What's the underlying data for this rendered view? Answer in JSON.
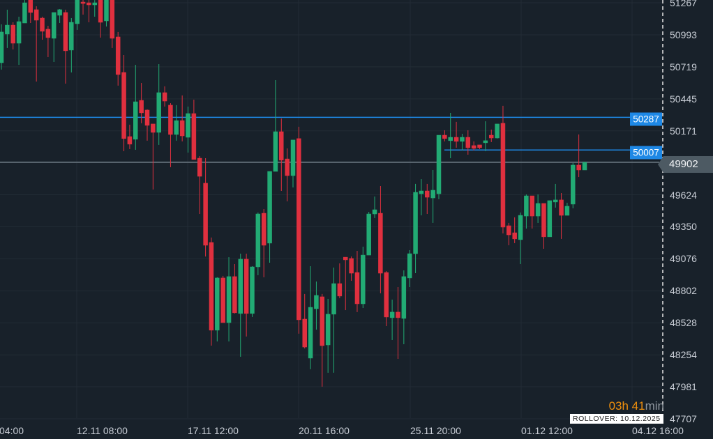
{
  "chart_data": {
    "type": "candlestick",
    "colors": {
      "background": "#18212a",
      "up": "#22ab74",
      "down": "#e0303f",
      "grid": "#222c35",
      "level_line": "#1e88e5",
      "current_line": "#5d6a73"
    },
    "price_ticks": [
      51267,
      50993,
      50719,
      50445,
      50171,
      49902,
      49624,
      49350,
      49076,
      48802,
      48528,
      48254,
      47981,
      47707
    ],
    "ylim": [
      47707,
      51267
    ],
    "time_ticks": [
      "04:00",
      "12.11 08:00",
      "17.11 12:00",
      "20.11 16:00",
      "25.11 20:00",
      "01.12 12:00",
      "04.12 16:00"
    ],
    "grid": true,
    "levels": [
      {
        "price": 50287,
        "label": "50287"
      },
      {
        "price": 50007,
        "label": "50007"
      }
    ],
    "current_price": {
      "price": 49902,
      "label": "49902"
    },
    "candles_ohlc": [
      [
        50754,
        51082,
        50695,
        51017
      ],
      [
        50999,
        51208,
        50880,
        51076
      ],
      [
        51076,
        51100,
        50868,
        50921
      ],
      [
        50921,
        51148,
        50736,
        51106
      ],
      [
        51094,
        51291,
        51094,
        51267
      ],
      [
        51291,
        51291,
        51094,
        51184
      ],
      [
        51208,
        51237,
        50593,
        51118
      ],
      [
        51136,
        51148,
        50951,
        51023
      ],
      [
        51041,
        51070,
        50802,
        50969
      ],
      [
        50963,
        51184,
        50760,
        51184
      ],
      [
        51160,
        51213,
        51094,
        51208
      ],
      [
        51184,
        51208,
        50575,
        50856
      ],
      [
        50862,
        51136,
        50671,
        51100
      ],
      [
        51088,
        51340,
        51035,
        51300
      ],
      [
        51273,
        51320,
        51166,
        51261
      ],
      [
        51267,
        51300,
        51100,
        51249
      ],
      [
        51249,
        51290,
        51148,
        51267
      ],
      [
        51300,
        51340,
        50969,
        51100
      ],
      [
        51112,
        51320,
        51064,
        51291
      ],
      [
        51291,
        51330,
        50880,
        50963
      ],
      [
        50975,
        51017,
        50558,
        50653
      ],
      [
        50671,
        50820,
        49997,
        50105
      ],
      [
        50122,
        50224,
        50015,
        50057
      ],
      [
        50099,
        50736,
        50009,
        50420
      ],
      [
        50432,
        50581,
        50236,
        50325
      ],
      [
        50349,
        50355,
        50087,
        50218
      ],
      [
        50230,
        50230,
        49669,
        50158
      ],
      [
        50158,
        50742,
        50051,
        50498
      ],
      [
        50498,
        50552,
        50379,
        50426
      ],
      [
        50391,
        50408,
        49860,
        50140
      ],
      [
        50140,
        50391,
        50087,
        50259
      ],
      [
        50259,
        50474,
        50081,
        50128
      ],
      [
        50116,
        50379,
        49985,
        50319
      ],
      [
        50319,
        50438,
        49926,
        49926
      ],
      [
        49937,
        49955,
        49460,
        49782
      ],
      [
        49723,
        49937,
        49096,
        49192
      ],
      [
        49216,
        49258,
        48333,
        48465
      ],
      [
        48465,
        48918,
        48369,
        48912
      ],
      [
        48912,
        48930,
        48530,
        48530
      ],
      [
        48530,
        49090,
        48369,
        48924
      ],
      [
        48924,
        49031,
        48608,
        48614
      ],
      [
        48608,
        49120,
        48238,
        49073
      ],
      [
        49073,
        49120,
        48411,
        48608
      ],
      [
        48608,
        49013,
        48578,
        49007
      ],
      [
        49007,
        49472,
        48936,
        49460
      ],
      [
        49466,
        49502,
        48918,
        49192
      ],
      [
        49210,
        49824,
        49043,
        49824
      ],
      [
        49824,
        50605,
        49824,
        50164
      ],
      [
        50164,
        50277,
        49657,
        49920
      ],
      [
        49931,
        50021,
        49568,
        49788
      ],
      [
        49788,
        50093,
        49687,
        50093
      ],
      [
        50105,
        50206,
        48435,
        48554
      ],
      [
        48560,
        48775,
        48309,
        48321
      ],
      [
        48226,
        49013,
        48131,
        48661
      ],
      [
        48649,
        48882,
        48470,
        48763
      ],
      [
        48751,
        48775,
        47982,
        48333
      ],
      [
        48339,
        48733,
        48101,
        48602
      ],
      [
        48602,
        49001,
        48101,
        48864
      ],
      [
        48864,
        49037,
        48739,
        48757
      ],
      [
        49090,
        49090,
        48637,
        49067
      ],
      [
        49079,
        49096,
        48888,
        48953
      ],
      [
        48959,
        49144,
        48620,
        48691
      ],
      [
        48691,
        49180,
        48655,
        49108
      ],
      [
        49108,
        49478,
        49108,
        49460
      ],
      [
        49460,
        49609,
        49425,
        49496
      ],
      [
        49466,
        49699,
        48781,
        48953
      ],
      [
        48959,
        48971,
        48500,
        48578
      ],
      [
        48572,
        48727,
        48381,
        48620
      ],
      [
        48620,
        48834,
        48220,
        48572
      ],
      [
        48566,
        48977,
        48345,
        48924
      ],
      [
        48912,
        49150,
        48834,
        49120
      ],
      [
        49120,
        49717,
        48953,
        49645
      ],
      [
        49633,
        49758,
        49448,
        49657
      ],
      [
        49657,
        49717,
        49460,
        49603
      ],
      [
        49597,
        49836,
        49383,
        49663
      ],
      [
        49633,
        50134,
        49586,
        50134
      ],
      [
        50134,
        50176,
        50081,
        50105
      ],
      [
        50087,
        50325,
        49937,
        50116
      ],
      [
        50116,
        50248,
        50027,
        50081
      ],
      [
        50081,
        50146,
        50003,
        50116
      ],
      [
        50116,
        50176,
        49967,
        50027
      ],
      [
        50045,
        50081,
        50003,
        50021
      ],
      [
        50051,
        50051,
        50015,
        50027
      ],
      [
        50069,
        50253,
        49997,
        50087
      ],
      [
        50134,
        50182,
        50075,
        50110
      ],
      [
        50110,
        50230,
        50105,
        50230
      ],
      [
        50236,
        50385,
        49293,
        49347
      ],
      [
        49359,
        49383,
        49192,
        49281
      ],
      [
        49299,
        49431,
        49210,
        49246
      ],
      [
        49240,
        49472,
        49031,
        49448
      ],
      [
        49442,
        49627,
        49335,
        49615
      ],
      [
        49615,
        49615,
        49335,
        49442
      ],
      [
        49442,
        49627,
        49383,
        49550
      ],
      [
        49550,
        49550,
        49162,
        49264
      ],
      [
        49264,
        49574,
        49264,
        49574
      ],
      [
        49562,
        49717,
        49514,
        49580
      ],
      [
        49580,
        49639,
        49246,
        49448
      ],
      [
        49448,
        49556,
        49448,
        49526
      ],
      [
        49544,
        49896,
        49508,
        49878
      ],
      [
        49878,
        50140,
        49776,
        49836
      ],
      [
        49836,
        49902,
        49836,
        49902
      ]
    ]
  },
  "countdown": {
    "value": "03h 41",
    "unit": "min"
  },
  "rollover": "ROLLOVER: 10.12.2025"
}
